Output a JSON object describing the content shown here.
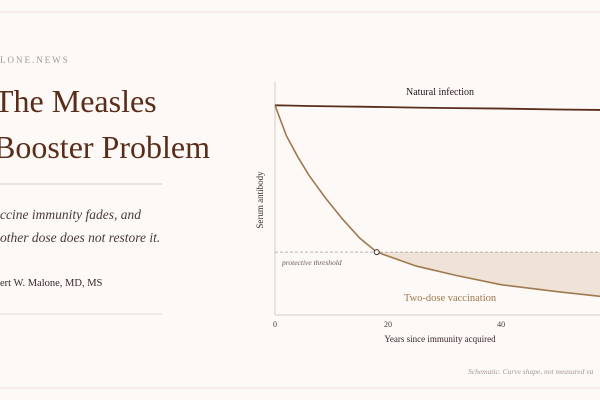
{
  "header": {
    "site": "LONE.NEWS",
    "title_lines": [
      "The Measles",
      "Booster Problem"
    ],
    "subtitle_lines": [
      "ccine immunity fades, and",
      "other dose does not restore it."
    ],
    "author": "ert W. Malone, MD, MS"
  },
  "footnote": "Schematic. Curve shape, not measured va",
  "chart_data": {
    "type": "line",
    "x_label": "Years since immunity acquired",
    "y_label": "Serum antibody",
    "x": [
      0,
      2,
      4,
      6,
      9,
      12,
      15,
      18,
      25,
      32,
      40,
      50,
      57.5
    ],
    "series": [
      {
        "name": "Natural infection",
        "color": "#5a2d1a",
        "values": [
          90,
          89.9,
          89.8,
          89.7,
          89.6,
          89.5,
          89.4,
          89.3,
          89.0,
          88.8,
          88.6,
          88.2,
          88
        ]
      },
      {
        "name": "Two-dose vaccination",
        "color": "#a0794e",
        "values": [
          90,
          77,
          68,
          60,
          50,
          41,
          33,
          27,
          21,
          17,
          13,
          10,
          8
        ]
      }
    ],
    "threshold": {
      "value": 27,
      "label": "protective threshold"
    },
    "shade_color": "#efe2d6",
    "xlim": [
      0,
      57.5
    ],
    "ylim": [
      0,
      100
    ],
    "xticks": [
      0,
      20,
      40
    ]
  }
}
